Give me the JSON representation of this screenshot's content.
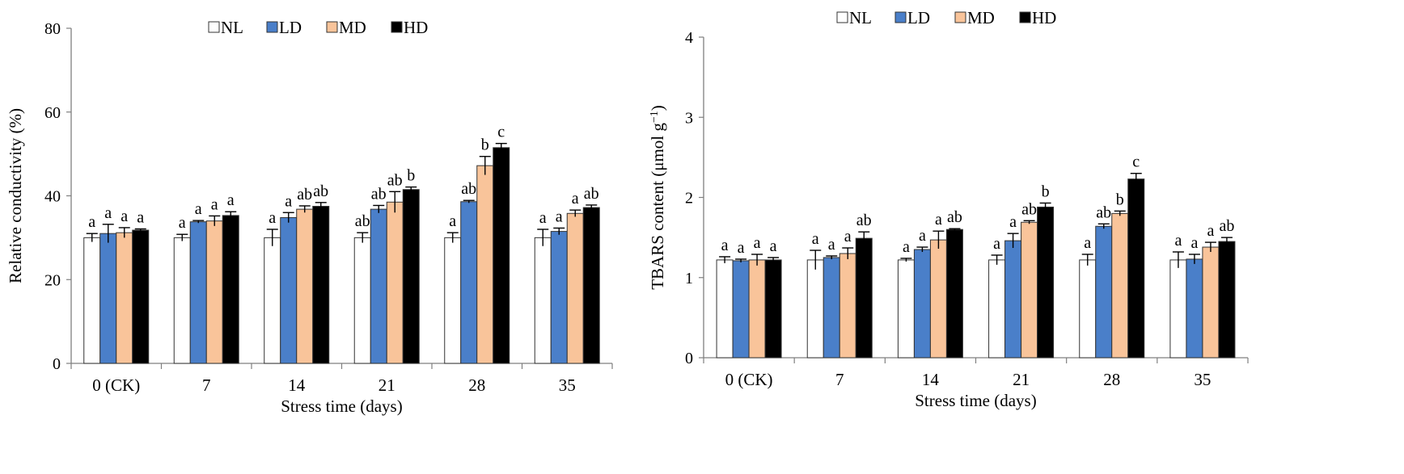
{
  "chart_data": [
    {
      "type": "bar",
      "title": "",
      "xlabel": "Stress time (days)",
      "ylabel": "Relative conductivity (%)",
      "ylim": [
        0,
        80
      ],
      "yticks": [
        0,
        20,
        40,
        60,
        80
      ],
      "grid": false,
      "legend_position": "top",
      "categories": [
        "0 (CK)",
        "7",
        "14",
        "21",
        "28",
        "35"
      ],
      "series": [
        {
          "name": "NL",
          "color": "#ffffff",
          "values": [
            30.0,
            30.0,
            30.0,
            30.0,
            30.0,
            30.0
          ],
          "errors": [
            1.0,
            0.8,
            2.0,
            1.2,
            1.2,
            2.0
          ],
          "letters": [
            "a",
            "a",
            "a",
            "ab",
            "a",
            "a"
          ]
        },
        {
          "name": "LD",
          "color": "#4a7fc9",
          "values": [
            31.0,
            33.8,
            34.8,
            36.8,
            38.6,
            31.5
          ],
          "errors": [
            2.2,
            0.3,
            1.2,
            0.9,
            0.3,
            0.8
          ],
          "letters": [
            "a",
            "a",
            "a",
            "ab",
            "ab",
            "a"
          ]
        },
        {
          "name": "MD",
          "color": "#f9c49a",
          "values": [
            31.2,
            34.0,
            36.8,
            38.5,
            47.2,
            35.8
          ],
          "errors": [
            1.2,
            1.2,
            0.8,
            2.5,
            2.2,
            0.8
          ],
          "letters": [
            "a",
            "a",
            "ab",
            "ab",
            "b",
            "a"
          ]
        },
        {
          "name": "HD",
          "color": "#000000",
          "values": [
            31.8,
            35.3,
            37.5,
            41.5,
            51.5,
            37.2
          ],
          "errors": [
            0.3,
            0.9,
            0.9,
            0.6,
            1.0,
            0.6
          ],
          "letters": [
            "a",
            "a",
            "ab",
            "b",
            "c",
            "ab"
          ]
        }
      ]
    },
    {
      "type": "bar",
      "title": "",
      "xlabel": "Stress time (days)",
      "ylabel": "TBARS content (μmol g",
      "ylabel_sup": "−1",
      "ylabel_close": ")",
      "ylim": [
        0,
        4
      ],
      "yticks": [
        0,
        1,
        2,
        3,
        4
      ],
      "grid": false,
      "legend_position": "top",
      "categories": [
        "0 (CK)",
        "7",
        "14",
        "21",
        "28",
        "35"
      ],
      "series": [
        {
          "name": "NL",
          "color": "#ffffff",
          "values": [
            1.22,
            1.22,
            1.22,
            1.22,
            1.22,
            1.22
          ],
          "errors": [
            0.04,
            0.12,
            0.02,
            0.06,
            0.07,
            0.1
          ],
          "letters": [
            "a",
            "a",
            "a",
            "a",
            "a",
            "a"
          ]
        },
        {
          "name": "LD",
          "color": "#4a7fc9",
          "values": [
            1.21,
            1.25,
            1.35,
            1.46,
            1.64,
            1.23
          ],
          "errors": [
            0.02,
            0.02,
            0.03,
            0.09,
            0.03,
            0.06
          ],
          "letters": [
            "a",
            "a",
            "a",
            "a",
            "ab",
            "a"
          ]
        },
        {
          "name": "MD",
          "color": "#f9c49a",
          "values": [
            1.22,
            1.3,
            1.47,
            1.69,
            1.8,
            1.38
          ],
          "errors": [
            0.07,
            0.07,
            0.11,
            0.02,
            0.03,
            0.06
          ],
          "letters": [
            "a",
            "a",
            "a",
            "ab",
            "b",
            "a"
          ]
        },
        {
          "name": "HD",
          "color": "#000000",
          "values": [
            1.22,
            1.49,
            1.6,
            1.88,
            2.23,
            1.45
          ],
          "errors": [
            0.03,
            0.08,
            0.01,
            0.05,
            0.07,
            0.05
          ],
          "letters": [
            "a",
            "ab",
            "ab",
            "b",
            "c",
            "ab"
          ]
        }
      ]
    }
  ]
}
